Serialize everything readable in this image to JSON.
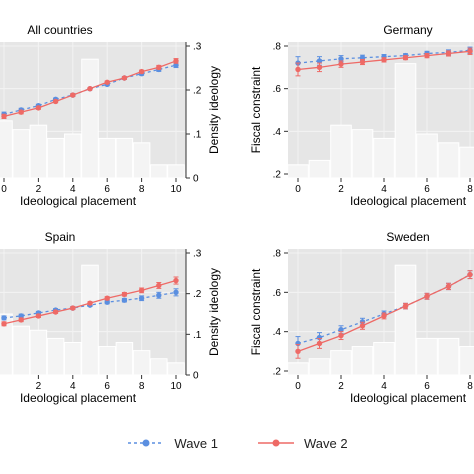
{
  "colors": {
    "wave1": "#5b8fe0",
    "wave2": "#ee6a66",
    "panel_bg": "#e6e6e6",
    "grid": "#f3f3f3",
    "hist_bar": "#f4f4f4"
  },
  "legend": [
    {
      "name": "Wave 1",
      "style": "dashed",
      "color": "#5b8fe0"
    },
    {
      "name": "Wave 2",
      "style": "solid",
      "color": "#ee6a66"
    }
  ],
  "chart_data": [
    {
      "type": "line",
      "title": "All countries",
      "xlabel": "Ideological placement",
      "ylabel": "",
      "y2label": "Density ideology",
      "x_ticks": [
        "0",
        "2",
        "4",
        "6",
        "8",
        "10"
      ],
      "y_ticks": [],
      "y2_ticks": [
        "0",
        ".1",
        ".2",
        ".3"
      ],
      "xlim": [
        0,
        10
      ],
      "ylim": [
        0.2,
        0.8
      ],
      "y2lim": [
        0,
        0.3
      ],
      "grid": true,
      "histogram": {
        "x": [
          0,
          1,
          2,
          3,
          4,
          5,
          6,
          7,
          8,
          9,
          10
        ],
        "density": [
          0.13,
          0.11,
          0.12,
          0.09,
          0.1,
          0.27,
          0.09,
          0.09,
          0.08,
          0.03,
          0.03
        ]
      },
      "series": [
        {
          "name": "Wave 1",
          "x": [
            0,
            1,
            2,
            3,
            4,
            5,
            6,
            7,
            8,
            9,
            10
          ],
          "y": [
            0.48,
            0.5,
            0.52,
            0.55,
            0.57,
            0.6,
            0.62,
            0.65,
            0.67,
            0.69,
            0.71
          ],
          "err": [
            0.01,
            0.008,
            0.007,
            0.006,
            0.006,
            0.005,
            0.006,
            0.006,
            0.007,
            0.009,
            0.011
          ]
        },
        {
          "name": "Wave 2",
          "x": [
            0,
            1,
            2,
            3,
            4,
            5,
            6,
            7,
            8,
            9,
            10
          ],
          "y": [
            0.47,
            0.49,
            0.51,
            0.54,
            0.57,
            0.6,
            0.63,
            0.65,
            0.68,
            0.7,
            0.73
          ],
          "err": [
            0.01,
            0.008,
            0.007,
            0.006,
            0.006,
            0.005,
            0.006,
            0.006,
            0.007,
            0.009,
            0.011
          ]
        }
      ]
    },
    {
      "type": "line",
      "title": "Germany",
      "xlabel": "Ideological placement",
      "ylabel": "Fiscal constraint",
      "y2label": "",
      "x_ticks": [
        "0",
        "2",
        "4",
        "6",
        "8"
      ],
      "y_ticks": [
        ".2",
        ".4",
        ".6",
        ".8"
      ],
      "y2_ticks": [],
      "xlim": [
        0,
        8
      ],
      "ylim": [
        0.2,
        0.8
      ],
      "y2lim": [
        0,
        0.3
      ],
      "grid": true,
      "histogram": {
        "x": [
          0,
          1,
          2,
          3,
          4,
          5,
          6,
          7,
          8
        ],
        "density": [
          0.03,
          0.04,
          0.12,
          0.11,
          0.09,
          0.26,
          0.1,
          0.08,
          0.07
        ]
      },
      "series": [
        {
          "name": "Wave 1",
          "x": [
            0,
            1,
            2,
            3,
            4,
            5,
            6,
            7,
            8
          ],
          "y": [
            0.72,
            0.73,
            0.74,
            0.745,
            0.75,
            0.755,
            0.765,
            0.77,
            0.78
          ],
          "err": [
            0.03,
            0.02,
            0.015,
            0.012,
            0.01,
            0.009,
            0.01,
            0.012,
            0.015
          ]
        },
        {
          "name": "Wave 2",
          "x": [
            0,
            1,
            2,
            3,
            4,
            5,
            6,
            7,
            8
          ],
          "y": [
            0.69,
            0.7,
            0.715,
            0.725,
            0.735,
            0.745,
            0.755,
            0.765,
            0.775
          ],
          "err": [
            0.03,
            0.02,
            0.015,
            0.012,
            0.01,
            0.009,
            0.01,
            0.012,
            0.015
          ]
        }
      ]
    },
    {
      "type": "line",
      "title": "Spain",
      "xlabel": "Ideological placement",
      "ylabel": "",
      "y2label": "Density ideology",
      "x_ticks": [
        "2",
        "4",
        "6",
        "8",
        "10"
      ],
      "y_ticks": [],
      "y2_ticks": [
        "0",
        ".1",
        ".2",
        ".3"
      ],
      "xlim": [
        0,
        10
      ],
      "ylim": [
        0.2,
        0.8
      ],
      "y2lim": [
        0,
        0.3
      ],
      "grid": true,
      "histogram": {
        "x": [
          0,
          1,
          2,
          3,
          4,
          5,
          6,
          7,
          8,
          9,
          10
        ],
        "density": [
          0.15,
          0.12,
          0.11,
          0.09,
          0.08,
          0.27,
          0.07,
          0.08,
          0.06,
          0.04,
          0.03
        ]
      },
      "series": [
        {
          "name": "Wave 1",
          "x": [
            0,
            1,
            2,
            3,
            4,
            5,
            6,
            7,
            8,
            9,
            10
          ],
          "y": [
            0.47,
            0.48,
            0.495,
            0.51,
            0.52,
            0.535,
            0.55,
            0.56,
            0.57,
            0.585,
            0.6
          ],
          "err": [
            0.01,
            0.009,
            0.008,
            0.007,
            0.007,
            0.007,
            0.008,
            0.009,
            0.012,
            0.015,
            0.018
          ]
        },
        {
          "name": "Wave 2",
          "x": [
            0,
            1,
            2,
            3,
            4,
            5,
            6,
            7,
            8,
            9,
            10
          ],
          "y": [
            0.44,
            0.46,
            0.48,
            0.5,
            0.52,
            0.545,
            0.57,
            0.59,
            0.61,
            0.635,
            0.66
          ],
          "err": [
            0.01,
            0.009,
            0.008,
            0.007,
            0.007,
            0.007,
            0.008,
            0.009,
            0.012,
            0.015,
            0.018
          ]
        }
      ]
    },
    {
      "type": "line",
      "title": "Sweden",
      "xlabel": "Ideological placement",
      "ylabel": "Fiscal constraint",
      "y2label": "",
      "x_ticks": [
        "0",
        "2",
        "4",
        "6",
        "8"
      ],
      "y_ticks": [
        ".2",
        ".4",
        ".6",
        ".8"
      ],
      "y2_ticks": [],
      "xlim": [
        0,
        8
      ],
      "ylim": [
        0.2,
        0.8
      ],
      "y2lim": [
        0,
        0.3
      ],
      "grid": true,
      "histogram": {
        "x": [
          0,
          1,
          2,
          3,
          4,
          5,
          6,
          7,
          8
        ],
        "density": [
          0.03,
          0.04,
          0.06,
          0.07,
          0.08,
          0.27,
          0.09,
          0.09,
          0.07
        ]
      },
      "series": [
        {
          "name": "Wave 1",
          "x": [
            0,
            1,
            2,
            3,
            4,
            5,
            6,
            7,
            8
          ],
          "y": [
            0.34,
            0.37,
            0.41,
            0.45,
            0.49,
            0.53,
            0.58,
            0.63,
            0.69
          ],
          "err": [
            0.035,
            0.025,
            0.02,
            0.018,
            0.015,
            0.014,
            0.015,
            0.016,
            0.02
          ]
        },
        {
          "name": "Wave 2",
          "x": [
            0,
            1,
            2,
            3,
            4,
            5,
            6,
            7,
            8
          ],
          "y": [
            0.3,
            0.34,
            0.38,
            0.43,
            0.48,
            0.53,
            0.58,
            0.63,
            0.69
          ],
          "err": [
            0.035,
            0.025,
            0.02,
            0.018,
            0.015,
            0.014,
            0.015,
            0.016,
            0.02
          ]
        }
      ]
    }
  ]
}
